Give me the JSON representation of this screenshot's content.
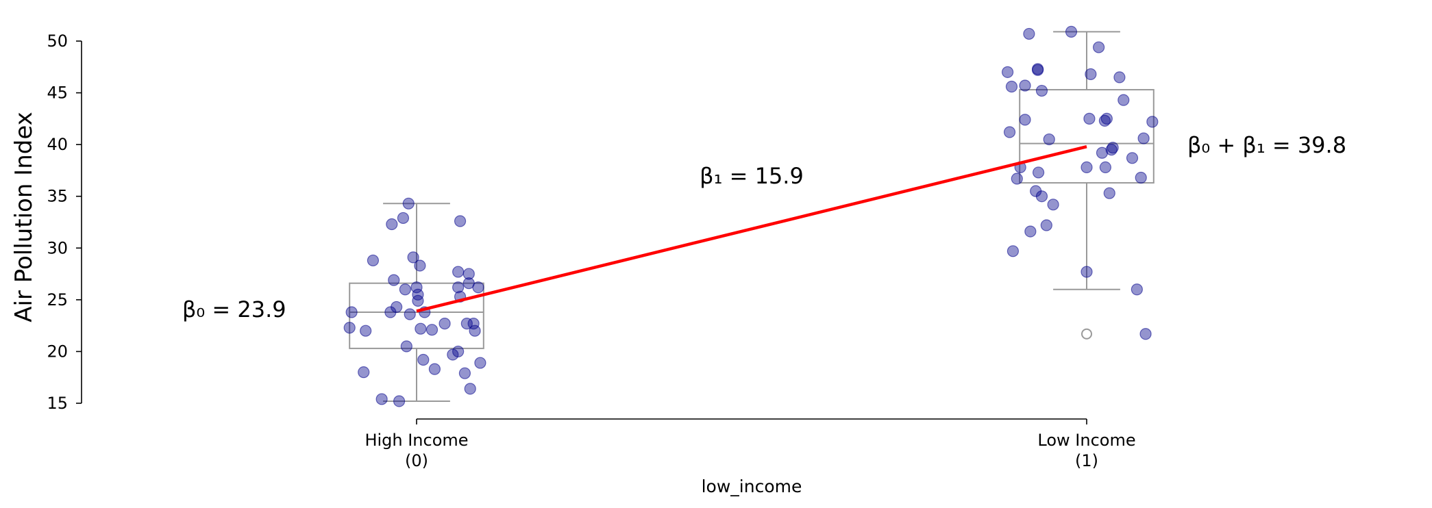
{
  "chart_data": {
    "type": "box_scatter",
    "xlabel": "low_income",
    "ylabel": "Air Pollution Index",
    "ylim": [
      15,
      50
    ],
    "yticks": [
      15,
      20,
      25,
      30,
      35,
      40,
      45,
      50
    ],
    "categories": [
      {
        "value": 0,
        "label_line1": "High Income",
        "label_line2": "(0)"
      },
      {
        "value": 1,
        "label_line1": "Low Income",
        "label_line2": "(1)"
      }
    ],
    "boxes": [
      {
        "category": 0,
        "whisker_low": 15.2,
        "q1": 20.3,
        "median": 23.8,
        "q3": 26.6,
        "whisker_high": 34.3,
        "outliers": []
      },
      {
        "category": 1,
        "whisker_low": 26.0,
        "q1": 36.3,
        "median": 40.1,
        "q3": 45.3,
        "whisker_high": 50.9,
        "outliers": [
          21.7
        ]
      }
    ],
    "points": [
      {
        "category": 0,
        "x": -0.097,
        "y": 23.8
      },
      {
        "category": 0,
        "x": -0.065,
        "y": 28.8
      },
      {
        "category": 0,
        "x": -0.052,
        "y": 15.4
      },
      {
        "category": 0,
        "x": -0.037,
        "y": 32.3
      },
      {
        "category": 0,
        "x": -0.034,
        "y": 26.9
      },
      {
        "category": 0,
        "x": -0.03,
        "y": 24.3
      },
      {
        "category": 0,
        "x": -0.026,
        "y": 15.2
      },
      {
        "category": 0,
        "x": -0.02,
        "y": 32.9
      },
      {
        "category": 0,
        "x": -0.017,
        "y": 26.0
      },
      {
        "category": 0,
        "x": -0.015,
        "y": 20.5
      },
      {
        "category": 0,
        "x": -0.012,
        "y": 34.3
      },
      {
        "category": 0,
        "x": -0.01,
        "y": 23.6
      },
      {
        "category": 0,
        "x": -0.005,
        "y": 29.1
      },
      {
        "category": 0,
        "x": 0.005,
        "y": 28.3
      },
      {
        "category": 0,
        "x": 0.01,
        "y": 19.2
      },
      {
        "category": 0,
        "x": 0.012,
        "y": 23.8
      },
      {
        "category": 0,
        "x": 0.0,
        "y": 26.2
      },
      {
        "category": 0,
        "x": -0.039,
        "y": 23.8
      },
      {
        "category": 0,
        "x": 0.002,
        "y": 25.5
      },
      {
        "category": 0,
        "x": 0.002,
        "y": 24.9
      },
      {
        "category": 0,
        "x": 0.006,
        "y": 22.2
      },
      {
        "category": 0,
        "x": 0.027,
        "y": 18.3
      },
      {
        "category": 0,
        "x": 0.023,
        "y": 22.1
      },
      {
        "category": 0,
        "x": 0.042,
        "y": 22.7
      },
      {
        "category": 0,
        "x": 0.054,
        "y": 19.7
      },
      {
        "category": 0,
        "x": 0.065,
        "y": 32.6
      },
      {
        "category": 0,
        "x": 0.062,
        "y": 27.7
      },
      {
        "category": 0,
        "x": 0.062,
        "y": 26.2
      },
      {
        "category": 0,
        "x": 0.065,
        "y": 25.3
      },
      {
        "category": 0,
        "x": 0.062,
        "y": 20.0
      },
      {
        "category": 0,
        "x": 0.072,
        "y": 17.9
      },
      {
        "category": 0,
        "x": 0.075,
        "y": 22.7
      },
      {
        "category": 0,
        "x": 0.078,
        "y": 27.5
      },
      {
        "category": 0,
        "x": 0.078,
        "y": 26.6
      },
      {
        "category": 0,
        "x": 0.08,
        "y": 16.4
      },
      {
        "category": 0,
        "x": 0.085,
        "y": 22.7
      },
      {
        "category": 0,
        "x": 0.087,
        "y": 22.0
      },
      {
        "category": 0,
        "x": 0.092,
        "y": 26.2
      },
      {
        "category": 0,
        "x": 0.095,
        "y": 18.9
      },
      {
        "category": 0,
        "x": -0.1,
        "y": 22.3
      },
      {
        "category": 0,
        "x": -0.076,
        "y": 22.0
      },
      {
        "category": 0,
        "x": -0.079,
        "y": 18.0
      },
      {
        "category": 1,
        "x": 0.882,
        "y": 47.0
      },
      {
        "category": 1,
        "x": 0.885,
        "y": 41.2
      },
      {
        "category": 1,
        "x": 0.888,
        "y": 45.6
      },
      {
        "category": 1,
        "x": 0.89,
        "y": 29.7
      },
      {
        "category": 1,
        "x": 0.896,
        "y": 36.7
      },
      {
        "category": 1,
        "x": 0.901,
        "y": 37.8
      },
      {
        "category": 1,
        "x": 0.908,
        "y": 45.7
      },
      {
        "category": 1,
        "x": 0.908,
        "y": 42.4
      },
      {
        "category": 1,
        "x": 0.914,
        "y": 50.7
      },
      {
        "category": 1,
        "x": 0.916,
        "y": 31.6
      },
      {
        "category": 1,
        "x": 0.924,
        "y": 35.5
      },
      {
        "category": 1,
        "x": 0.927,
        "y": 47.3
      },
      {
        "category": 1,
        "x": 0.927,
        "y": 47.2
      },
      {
        "category": 1,
        "x": 0.928,
        "y": 37.3
      },
      {
        "category": 1,
        "x": 0.933,
        "y": 45.2
      },
      {
        "category": 1,
        "x": 0.933,
        "y": 35.0
      },
      {
        "category": 1,
        "x": 0.94,
        "y": 32.2
      },
      {
        "category": 1,
        "x": 0.944,
        "y": 40.5
      },
      {
        "category": 1,
        "x": 0.95,
        "y": 34.2
      },
      {
        "category": 1,
        "x": 0.977,
        "y": 50.9
      },
      {
        "category": 1,
        "x": 1.0,
        "y": 27.7
      },
      {
        "category": 1,
        "x": 1.0,
        "y": 37.8
      },
      {
        "category": 1,
        "x": 1.004,
        "y": 42.5
      },
      {
        "category": 1,
        "x": 1.006,
        "y": 46.8
      },
      {
        "category": 1,
        "x": 1.018,
        "y": 49.4
      },
      {
        "category": 1,
        "x": 1.023,
        "y": 39.2
      },
      {
        "category": 1,
        "x": 1.027,
        "y": 42.3
      },
      {
        "category": 1,
        "x": 1.028,
        "y": 37.8
      },
      {
        "category": 1,
        "x": 1.03,
        "y": 42.5
      },
      {
        "category": 1,
        "x": 1.034,
        "y": 35.3
      },
      {
        "category": 1,
        "x": 1.037,
        "y": 39.5
      },
      {
        "category": 1,
        "x": 1.039,
        "y": 39.7
      },
      {
        "category": 1,
        "x": 1.049,
        "y": 46.5
      },
      {
        "category": 1,
        "x": 1.055,
        "y": 44.3
      },
      {
        "category": 1,
        "x": 1.068,
        "y": 38.7
      },
      {
        "category": 1,
        "x": 1.075,
        "y": 26.0
      },
      {
        "category": 1,
        "x": 1.081,
        "y": 36.8
      },
      {
        "category": 1,
        "x": 1.085,
        "y": 40.6
      },
      {
        "category": 1,
        "x": 1.088,
        "y": 21.7
      },
      {
        "category": 1,
        "x": 1.098,
        "y": 42.2
      }
    ],
    "regression_line": {
      "x": [
        0,
        1
      ],
      "y": [
        23.9,
        39.8
      ],
      "color": "#ff0000"
    },
    "annotations": {
      "beta0": "β₀ = 23.9",
      "beta1": "β₁ = 15.9",
      "beta0_plus_beta1": "β₀ + β₁ = 39.8"
    },
    "colors": {
      "points": "#00008b",
      "box": "#999999",
      "line": "#ff0000"
    }
  }
}
